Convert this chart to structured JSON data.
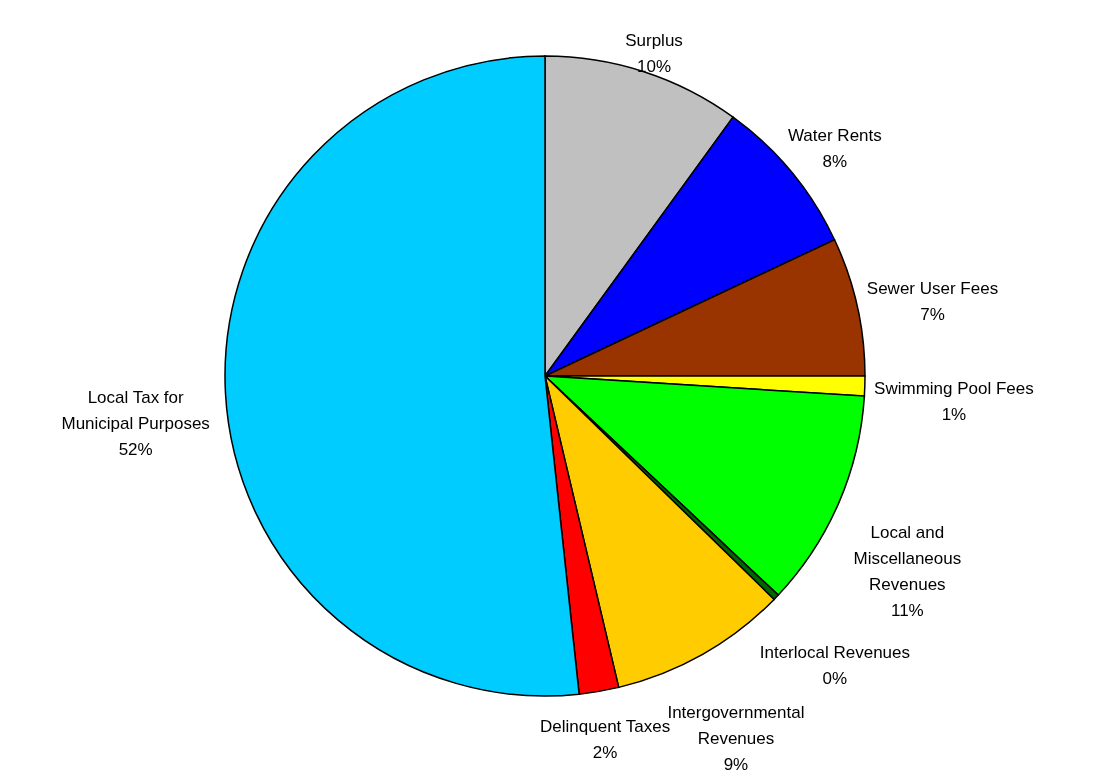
{
  "chart_data": {
    "type": "pie",
    "categories": [
      "Surplus",
      "Water Rents",
      "Sewer User Fees",
      "Swimming Pool Fees",
      "Local and\nMiscellaneous\nRevenues",
      "Interlocal Revenues",
      "Intergovernmental\nRevenues",
      "Delinquent Taxes",
      "Local Tax for\nMunicipal Purposes"
    ],
    "values": [
      10,
      8,
      7,
      1,
      11,
      0.3,
      9,
      2,
      51.7
    ],
    "value_labels": [
      "10%",
      "8%",
      "7%",
      "1%",
      "11%",
      "0%",
      "9%",
      "2%",
      "52%"
    ],
    "colors": [
      "#c0c0c0",
      "#0000ff",
      "#993300",
      "#ffff00",
      "#00ff00",
      "#006600",
      "#ffcc00",
      "#ff0000",
      "#00ccff"
    ]
  }
}
